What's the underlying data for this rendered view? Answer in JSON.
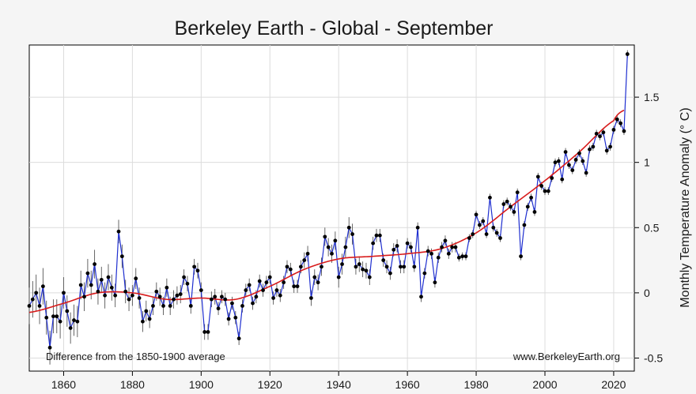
{
  "chart_data": {
    "type": "line",
    "title": "Berkeley Earth - Global - September",
    "ylabel": "Monthly Temperature Anomaly (° C)",
    "xlabel": "",
    "baseline_note": "Difference from the 1850-1900 average",
    "source": "www.BerkeleyEarth.org",
    "xlim": [
      1850,
      2026
    ],
    "ylim": [
      -0.6,
      1.9
    ],
    "x_ticks": [
      1860,
      1880,
      1900,
      1920,
      1940,
      1960,
      1980,
      2000,
      2020
    ],
    "y_ticks": [
      -0.5,
      0,
      0.5,
      1,
      1.5
    ],
    "y_tick_labels": [
      "-0.5",
      "0",
      "0.5",
      "1",
      "1.5"
    ],
    "grid": true,
    "colors": {
      "data_line": "#1f2fd0",
      "trend_line": "#d81b1b",
      "points": "#000000",
      "error_bars": "#555555",
      "grid": "#dcdcdc"
    },
    "series": [
      {
        "marker": "point-with-error-bar",
        "x_start": 1850,
        "values": [
          -0.1,
          -0.05,
          0.0,
          -0.1,
          0.05,
          -0.19,
          -0.42,
          -0.18,
          -0.18,
          -0.22,
          0.0,
          -0.14,
          -0.27,
          -0.21,
          -0.22,
          0.06,
          -0.03,
          0.15,
          0.06,
          0.22,
          0.01,
          0.1,
          -0.02,
          0.12,
          0.04,
          -0.02,
          0.47,
          0.28,
          0.01,
          -0.05,
          -0.02,
          0.11,
          -0.04,
          -0.22,
          -0.14,
          -0.2,
          -0.1,
          0.01,
          -0.03,
          -0.1,
          0.04,
          -0.1,
          -0.05,
          -0.02,
          -0.01,
          0.12,
          0.07,
          -0.1,
          0.2,
          0.17,
          0.02,
          -0.3,
          -0.3,
          -0.05,
          -0.03,
          -0.12,
          -0.03,
          -0.05,
          -0.2,
          -0.08,
          -0.19,
          -0.35,
          -0.1,
          0.02,
          0.06,
          -0.08,
          -0.03,
          0.09,
          0.02,
          0.08,
          0.12,
          -0.04,
          0.02,
          -0.02,
          0.08,
          0.2,
          0.18,
          0.05,
          0.05,
          0.2,
          0.25,
          0.3,
          -0.04,
          0.12,
          0.08,
          0.2,
          0.43,
          0.35,
          0.3,
          0.4,
          0.12,
          0.22,
          0.35,
          0.5,
          0.45,
          0.2,
          0.22,
          0.18,
          0.17,
          0.12,
          0.38,
          0.44,
          0.44,
          0.25,
          0.2,
          0.15,
          0.33,
          0.36,
          0.2,
          0.2,
          0.38,
          0.35,
          0.2,
          0.5,
          -0.03,
          0.15,
          0.32,
          0.3,
          0.08,
          0.27,
          0.35,
          0.4,
          0.3,
          0.35,
          0.35,
          0.27,
          0.28,
          0.28,
          0.42,
          0.45,
          0.6,
          0.52,
          0.55,
          0.45,
          0.73,
          0.5,
          0.46,
          0.42,
          0.68,
          0.7,
          0.66,
          0.62,
          0.77,
          0.28,
          0.52,
          0.66,
          0.73,
          0.62,
          0.89,
          0.82,
          0.78,
          0.78,
          0.88,
          1.0,
          1.01,
          0.87,
          1.08,
          0.98,
          0.94,
          1.02,
          1.07,
          1.01,
          0.92,
          1.1,
          1.12,
          1.22,
          1.2,
          1.23,
          1.09,
          1.12,
          1.25,
          1.33,
          1.3,
          1.24,
          1.83
        ],
        "uncertainty": [
          0.14,
          0.14,
          0.14,
          0.14,
          0.14,
          0.13,
          0.13,
          0.13,
          0.13,
          0.13,
          0.12,
          0.12,
          0.12,
          0.12,
          0.12,
          0.11,
          0.11,
          0.11,
          0.11,
          0.11,
          0.1,
          0.1,
          0.1,
          0.1,
          0.1,
          0.09,
          0.09,
          0.09,
          0.09,
          0.09,
          0.08,
          0.08,
          0.08,
          0.08,
          0.08,
          0.07,
          0.07,
          0.07,
          0.07,
          0.07,
          0.07,
          0.07,
          0.07,
          0.07,
          0.07,
          0.06,
          0.06,
          0.06,
          0.06,
          0.06,
          0.06,
          0.06,
          0.06,
          0.06,
          0.06,
          0.05,
          0.05,
          0.05,
          0.05,
          0.05,
          0.05,
          0.05,
          0.05,
          0.05,
          0.05,
          0.05,
          0.05,
          0.05,
          0.05,
          0.05,
          0.05,
          0.05,
          0.05,
          0.05,
          0.05,
          0.05,
          0.05,
          0.05,
          0.05,
          0.05,
          0.06,
          0.06,
          0.06,
          0.06,
          0.06,
          0.07,
          0.07,
          0.07,
          0.07,
          0.07,
          0.08,
          0.08,
          0.08,
          0.08,
          0.08,
          0.06,
          0.06,
          0.06,
          0.06,
          0.06,
          0.05,
          0.05,
          0.05,
          0.05,
          0.05,
          0.05,
          0.05,
          0.05,
          0.05,
          0.05,
          0.04,
          0.04,
          0.04,
          0.04,
          0.04,
          0.04,
          0.04,
          0.04,
          0.04,
          0.04,
          0.04,
          0.04,
          0.04,
          0.04,
          0.04,
          0.03,
          0.03,
          0.03,
          0.03,
          0.03,
          0.03,
          0.03,
          0.03,
          0.03,
          0.03,
          0.03,
          0.03,
          0.03,
          0.03,
          0.03,
          0.03,
          0.03,
          0.03,
          0.03,
          0.03,
          0.03,
          0.03,
          0.03,
          0.03,
          0.03,
          0.03,
          0.03,
          0.03,
          0.03,
          0.03,
          0.03,
          0.03,
          0.03,
          0.03,
          0.03,
          0.03,
          0.03,
          0.03,
          0.03,
          0.03,
          0.03,
          0.03,
          0.03,
          0.03,
          0.03,
          0.03,
          0.03,
          0.03,
          0.03,
          0.03
        ]
      },
      {
        "marker": "smooth-trend",
        "x": [
          1850,
          1860,
          1870,
          1880,
          1890,
          1900,
          1910,
          1920,
          1930,
          1940,
          1950,
          1960,
          1970,
          1980,
          1990,
          2000,
          2010,
          2020,
          2023
        ],
        "values": [
          -0.15,
          -0.08,
          0.0,
          0.0,
          -0.05,
          -0.04,
          -0.05,
          0.05,
          0.18,
          0.26,
          0.28,
          0.3,
          0.34,
          0.46,
          0.66,
          0.86,
          1.08,
          1.32,
          1.4
        ]
      }
    ]
  }
}
